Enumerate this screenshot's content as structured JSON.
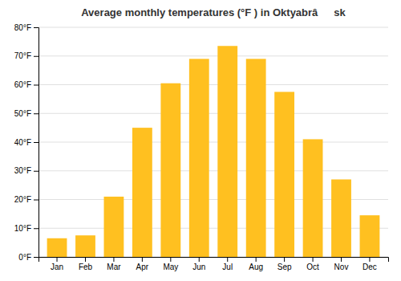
{
  "chart_data": {
    "type": "bar",
    "title": "Average monthly temperatures (°F ) in Oktyabrâsk",
    "categories": [
      "Jan",
      "Feb",
      "Mar",
      "Apr",
      "May",
      "Jun",
      "Jul",
      "Aug",
      "Sep",
      "Oct",
      "Nov",
      "Dec"
    ],
    "values": [
      6.5,
      7.5,
      21.0,
      45.0,
      60.5,
      69.0,
      73.5,
      69.0,
      57.5,
      41.0,
      27.0,
      14.5
    ],
    "color": "#FFC020",
    "ylim": [
      0,
      80
    ],
    "yticks": [
      {
        "value": 0,
        "label": "0°F"
      },
      {
        "value": 10,
        "label": "10°F"
      },
      {
        "value": 20,
        "label": "20°F"
      },
      {
        "value": 30,
        "label": "30°F"
      },
      {
        "value": 40,
        "label": "40°F"
      },
      {
        "value": 50,
        "label": "50°F"
      },
      {
        "value": 60,
        "label": "60°F"
      },
      {
        "value": 70,
        "label": "70°F"
      },
      {
        "value": 80,
        "label": "80°F"
      }
    ],
    "grid": true
  }
}
